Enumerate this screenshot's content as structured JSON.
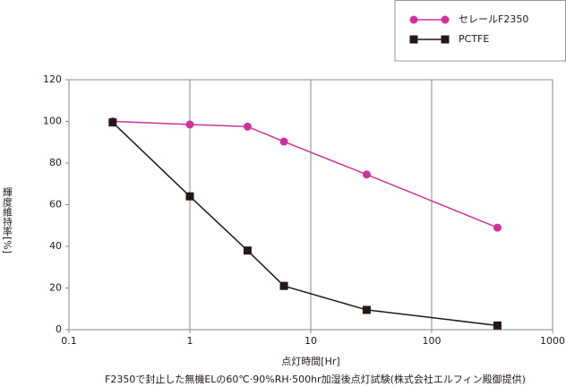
{
  "chart_data": {
    "type": "line",
    "x_label": "点灯時間[Hr]",
    "y_label": "輝度維持率[%]",
    "caption": "F2350で封止した無機ELの60℃·90%RH·500hr加湿後点灯試験(株式会社エルフィン殿御提供)",
    "x": [
      0.23,
      1,
      3,
      6,
      29,
      350
    ],
    "xscale": "log",
    "xlim": [
      0.1,
      1000
    ],
    "xticks": [
      0.1,
      1,
      10,
      100,
      1000
    ],
    "ylim": [
      0,
      120
    ],
    "yticks": [
      0,
      20,
      40,
      60,
      80,
      100,
      120
    ],
    "x_grid": true,
    "legend": "top-right",
    "series": [
      {
        "name": "セレールF2350",
        "color": "#cc3399",
        "marker": "circle",
        "values": [
          100,
          98.5,
          97.5,
          90.3,
          74.5,
          49
        ]
      },
      {
        "name": "PCTFE",
        "color": "#231815",
        "marker": "square",
        "values": [
          99.5,
          64,
          38,
          21,
          9.5,
          2
        ]
      }
    ]
  }
}
